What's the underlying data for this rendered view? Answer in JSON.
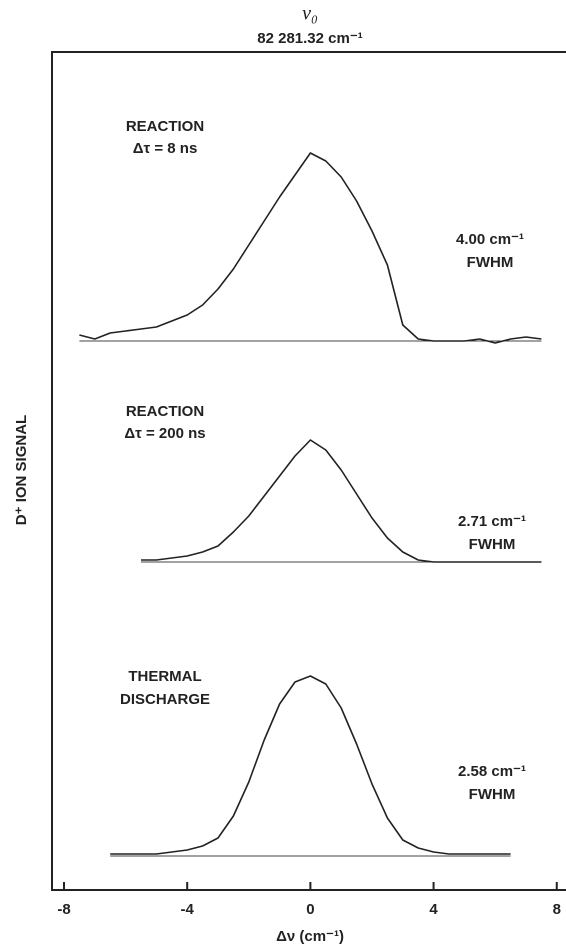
{
  "figure": {
    "title": "ν₀",
    "subtitle": "82 281.32 cm⁻¹",
    "xlabel": "Δν (cm⁻¹)",
    "ylabel": "D⁺ ION SIGNAL",
    "xlim": [
      -8.39,
      8.3
    ],
    "xticks": [
      -8,
      -4,
      0,
      4,
      8
    ]
  },
  "chart_data": [
    {
      "type": "line",
      "color": "#222",
      "ylim": [
        0,
        1
      ],
      "annotations": [
        "REACTION",
        "Δτ = 8 ns",
        "4.00 cm⁻¹",
        "FWHM"
      ],
      "x": [
        -7.5,
        -7,
        -6.5,
        -6,
        -5.5,
        -5,
        -4.5,
        -4,
        -3.5,
        -3,
        -2.5,
        -2,
        -1.5,
        -1,
        -0.5,
        0,
        0.5,
        1,
        1.5,
        2,
        2.5,
        3,
        3.5,
        4,
        4.5,
        5,
        5.5,
        6,
        6.5,
        7,
        7.5
      ],
      "values": [
        0.03,
        0.01,
        0.04,
        0.05,
        0.06,
        0.07,
        0.1,
        0.13,
        0.18,
        0.26,
        0.36,
        0.48,
        0.6,
        0.72,
        0.83,
        0.94,
        0.9,
        0.82,
        0.7,
        0.55,
        0.38,
        0.08,
        0.01,
        0,
        0,
        0,
        0.01,
        -0.01,
        0.01,
        0.02,
        0.01
      ]
    },
    {
      "type": "line",
      "color": "#222",
      "ylim": [
        0,
        1
      ],
      "annotations": [
        "REACTION",
        "Δτ = 200 ns",
        "2.71 cm⁻¹",
        "FWHM"
      ],
      "x": [
        -5.5,
        -5,
        -4.5,
        -4,
        -3.5,
        -3,
        -2.5,
        -2,
        -1.5,
        -1,
        -0.5,
        0,
        0.5,
        1,
        1.5,
        2,
        2.5,
        3,
        3.5,
        4,
        4.5,
        5,
        5.5,
        6,
        6.5,
        7,
        7.5
      ],
      "values": [
        0.01,
        0.01,
        0.02,
        0.03,
        0.05,
        0.08,
        0.15,
        0.23,
        0.33,
        0.43,
        0.53,
        0.61,
        0.56,
        0.46,
        0.34,
        0.22,
        0.12,
        0.05,
        0.01,
        0,
        0,
        0,
        0,
        0,
        0,
        0,
        0
      ]
    },
    {
      "type": "line",
      "color": "#222",
      "ylim": [
        0,
        1
      ],
      "annotations": [
        "THERMAL",
        "DISCHARGE",
        "2.58 cm⁻¹",
        "FWHM"
      ],
      "x": [
        -6.5,
        -6,
        -5.5,
        -5,
        -4.5,
        -4,
        -3.5,
        -3,
        -2.5,
        -2,
        -1.5,
        -1,
        -0.5,
        0,
        0.5,
        1,
        1.5,
        2,
        2.5,
        3,
        3.5,
        4,
        4.5,
        5,
        5.5,
        6,
        6.5
      ],
      "values": [
        0.01,
        0.01,
        0.01,
        0.01,
        0.02,
        0.03,
        0.05,
        0.09,
        0.2,
        0.37,
        0.58,
        0.76,
        0.87,
        0.9,
        0.86,
        0.74,
        0.56,
        0.36,
        0.19,
        0.08,
        0.04,
        0.02,
        0.01,
        0.01,
        0.01,
        0.01,
        0.01
      ]
    }
  ]
}
